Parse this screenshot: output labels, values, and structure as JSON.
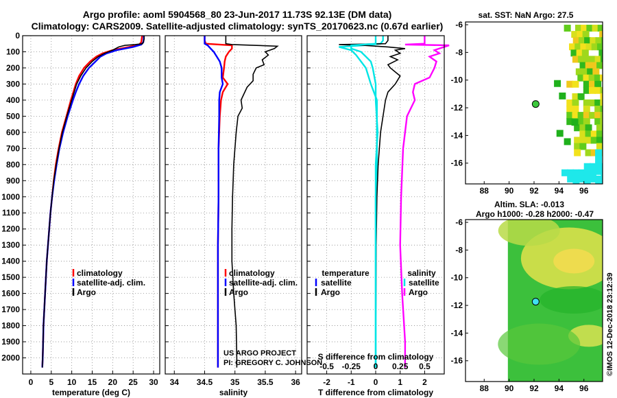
{
  "header": {
    "line1": "Argo profile: aoml 5904568_80 23-Jun-2017 11.73S 92.13E (DM data)",
    "line2": "Climatology: CARS2009. Satellite-adjusted climatology: synTS_20170623.nc (0.67d earlier)"
  },
  "colors": {
    "climatology": "#ff0000",
    "satellite": "#0000ff",
    "argo": "#000000",
    "t_diff": "#00e5e5",
    "s_diff": "#ff00ff",
    "ocean_yellow": "#e8e830",
    "ocean_green": "#2ecc2e"
  },
  "depth_ticks": [
    "0",
    "100",
    "200",
    "300",
    "400",
    "500",
    "600",
    "700",
    "800",
    "900",
    "1000",
    "1100",
    "1200",
    "1300",
    "1400",
    "1500",
    "1600",
    "1700",
    "1800",
    "1900",
    "2000"
  ],
  "chart_data": [
    {
      "type": "line",
      "id": "temperature",
      "xlabel": "temperature (deg C)",
      "ylabel": "",
      "xlim": [
        -2,
        31.5
      ],
      "ylim": [
        2100,
        0
      ],
      "xticks": [
        "0",
        "5",
        "10",
        "15",
        "20",
        "25",
        "30"
      ],
      "xtick_values": [
        0,
        5,
        10,
        15,
        20,
        25,
        30
      ],
      "legend": [
        "climatology",
        "satellite-adj. clim.",
        "Argo"
      ],
      "series": [
        {
          "name": "climatology",
          "color": "#ff0000",
          "depth": [
            0,
            20,
            40,
            55,
            70,
            90,
            110,
            130,
            160,
            200,
            250,
            300,
            350,
            400,
            500,
            600,
            700,
            800,
            900,
            1000,
            1100,
            1200,
            1300,
            1400,
            1500,
            1600,
            1700,
            1800,
            1900,
            2000,
            2060
          ],
          "values": [
            27.2,
            27.1,
            27.0,
            26.5,
            24.0,
            20.0,
            17.5,
            16.0,
            14.5,
            13.0,
            11.8,
            11.0,
            10.4,
            9.8,
            8.7,
            7.6,
            6.8,
            6.1,
            5.6,
            5.2,
            4.8,
            4.5,
            4.2,
            3.9,
            3.7,
            3.5,
            3.3,
            3.1,
            3.0,
            2.9,
            2.8
          ]
        },
        {
          "name": "satellite-adj. clim.",
          "color": "#0000ff",
          "depth": [
            0,
            20,
            40,
            55,
            70,
            90,
            110,
            130,
            160,
            200,
            250,
            300,
            350,
            400,
            500,
            600,
            700,
            800,
            900,
            1000,
            1100,
            1200,
            1300,
            1400,
            1500,
            1600,
            1700,
            1800,
            1900,
            2000,
            2060
          ],
          "values": [
            27.6,
            27.6,
            27.5,
            27.0,
            25.0,
            21.0,
            18.5,
            17.0,
            15.8,
            14.2,
            12.8,
            11.8,
            11.0,
            10.3,
            9.0,
            7.9,
            7.0,
            6.3,
            5.7,
            5.2,
            4.8,
            4.5,
            4.2,
            3.9,
            3.7,
            3.5,
            3.3,
            3.1,
            3.0,
            2.9,
            2.8
          ]
        },
        {
          "name": "Argo",
          "color": "#000000",
          "depth": [
            0,
            20,
            40,
            50,
            55,
            60,
            70,
            90,
            110,
            130,
            160,
            200,
            250,
            300,
            350,
            400,
            500,
            600,
            700,
            800,
            900,
            1000,
            1100,
            1200,
            1300,
            1400,
            1500,
            1600,
            1700,
            1800,
            1900,
            2000,
            2060
          ],
          "values": [
            27.7,
            27.7,
            27.5,
            27.3,
            25.5,
            23.0,
            21.5,
            20.0,
            18.0,
            16.5,
            15.0,
            13.5,
            12.2,
            11.2,
            10.6,
            10.0,
            8.8,
            7.7,
            6.9,
            6.2,
            5.6,
            5.2,
            4.8,
            4.5,
            4.2,
            3.9,
            3.7,
            3.5,
            3.3,
            3.1,
            3.0,
            2.9,
            2.8
          ]
        }
      ]
    },
    {
      "type": "line",
      "id": "salinity",
      "xlabel": "salinity",
      "xlim": [
        33.85,
        36.1
      ],
      "ylim": [
        2100,
        0
      ],
      "xticks": [
        "34",
        "34.5",
        "35",
        "35.5",
        "36"
      ],
      "xtick_values": [
        34,
        34.5,
        35,
        35.5,
        36
      ],
      "legend": [
        "climatology",
        "satellite-adj. clim.",
        "Argo"
      ],
      "credit_line1": "US ARGO PROJECT",
      "credit_line2": "PI: GREGORY C. JOHNSON",
      "series": [
        {
          "name": "climatology",
          "color": "#ff0000",
          "depth": [
            0,
            30,
            50,
            60,
            80,
            100,
            130,
            160,
            200,
            260,
            300,
            350,
            400,
            500,
            700,
            1000,
            1300,
            1600,
            1900,
            2060
          ],
          "values": [
            34.5,
            34.5,
            34.52,
            34.95,
            34.95,
            34.9,
            34.85,
            34.83,
            34.82,
            34.8,
            34.88,
            34.8,
            34.77,
            34.75,
            34.73,
            34.73,
            34.72,
            34.72,
            34.72,
            34.72
          ]
        },
        {
          "name": "satellite-adj. clim.",
          "color": "#0000ff",
          "depth": [
            0,
            30,
            50,
            60,
            80,
            100,
            130,
            160,
            200,
            260,
            300,
            350,
            400,
            500,
            700,
            1000,
            1300,
            1600,
            1900,
            2060
          ],
          "values": [
            34.5,
            34.5,
            34.5,
            34.55,
            34.6,
            34.65,
            34.7,
            34.75,
            34.78,
            34.78,
            34.8,
            34.75,
            34.74,
            34.74,
            34.73,
            34.73,
            34.72,
            34.72,
            34.72,
            34.72
          ]
        },
        {
          "name": "Argo",
          "color": "#000000",
          "depth": [
            0,
            30,
            50,
            55,
            65,
            80,
            100,
            120,
            150,
            180,
            200,
            240,
            280,
            320,
            360,
            400,
            450,
            500,
            600,
            700,
            800,
            900,
            1000,
            1200,
            1400,
            1600,
            1800,
            2000,
            2060
          ],
          "values": [
            34.85,
            34.85,
            34.85,
            34.95,
            35.7,
            35.65,
            35.5,
            35.55,
            35.45,
            35.48,
            35.35,
            35.3,
            35.3,
            35.2,
            35.15,
            35.1,
            35.12,
            35.05,
            35.02,
            35.0,
            34.98,
            34.97,
            34.96,
            34.95,
            34.95,
            34.98,
            35.02,
            35.03,
            35.03
          ]
        }
      ]
    },
    {
      "type": "line",
      "id": "difference",
      "xlabel": "T difference from climatology",
      "xlabel_top": "S difference from climatology",
      "xlim": [
        -2.8,
        2.8
      ],
      "ylim": [
        2100,
        0
      ],
      "xticks": [
        "-2",
        "-1",
        "0",
        "1",
        "2"
      ],
      "xtick_values": [
        -2,
        -1,
        0,
        1,
        2
      ],
      "top_ticks": [
        "-0.5",
        "-0.25",
        "0",
        "0.25",
        "0.5"
      ],
      "top_tick_values": [
        -0.5,
        -0.25,
        0,
        0.25,
        0.5
      ],
      "legend_t_title": "temperature",
      "legend_s_title": "salinity",
      "legend_t": [
        "satellite",
        "Argo"
      ],
      "legend_s": [
        "satellite",
        "Argo"
      ],
      "series": [
        {
          "name": "T satellite",
          "color": "#00e5e5",
          "depth": [
            0,
            30,
            50,
            60,
            70,
            90,
            120,
            160,
            200,
            300,
            400,
            600,
            800,
            1000,
            1200,
            1500,
            1800,
            2060
          ],
          "values": [
            0.3,
            0.3,
            0.2,
            -0.5,
            -1.5,
            -1.0,
            -0.8,
            -0.6,
            -0.4,
            -0.2,
            0.05,
            0.05,
            0.05,
            0.0,
            0.0,
            0.0,
            0.0,
            0.0
          ]
        },
        {
          "name": "T Argo",
          "color": "#000000",
          "depth": [
            0,
            30,
            50,
            55,
            60,
            70,
            80,
            90,
            110,
            130,
            150,
            180,
            200,
            250,
            300,
            350,
            400,
            500,
            600,
            800,
            1000,
            1300,
            1600,
            1900,
            2060
          ],
          "values": [
            0.5,
            0.5,
            0.4,
            -1.5,
            -0.5,
            0.5,
            1.2,
            0.8,
            1.0,
            0.6,
            0.9,
            0.5,
            0.6,
            1.0,
            0.8,
            0.5,
            0.4,
            0.3,
            0.2,
            0.1,
            0.05,
            0.02,
            0.01,
            0.0,
            0.0
          ]
        },
        {
          "name": "S satellite",
          "color": "#00e5e5",
          "depth": [
            0,
            40,
            50,
            60,
            80,
            100,
            130,
            160,
            200,
            300,
            400,
            600,
            800,
            1000,
            1200,
            1500,
            1800,
            2060
          ],
          "values": [
            0.0,
            0.0,
            0.0,
            -0.25,
            -0.25,
            -0.15,
            -0.1,
            -0.05,
            -0.03,
            0.0,
            0.0,
            0.02,
            0.0,
            0.0,
            0.0,
            0.0,
            0.0,
            0.0
          ]
        },
        {
          "name": "S Argo",
          "color": "#ff00ff",
          "depth": [
            0,
            30,
            50,
            55,
            60,
            70,
            90,
            110,
            130,
            160,
            200,
            260,
            300,
            350,
            400,
            500,
            700,
            1000,
            1300,
            1600,
            1900,
            2060
          ],
          "values": [
            0.5,
            0.5,
            0.5,
            0.3,
            0.75,
            0.7,
            0.6,
            0.65,
            0.55,
            0.62,
            0.6,
            0.55,
            0.4,
            0.38,
            0.4,
            0.32,
            0.28,
            0.26,
            0.25,
            0.27,
            0.3,
            0.3
          ]
        }
      ]
    },
    {
      "type": "heatmap",
      "id": "sst_map",
      "title": "sat. SST: NaN Argo: 27.5",
      "xlim": [
        86.5,
        97.5
      ],
      "ylim": [
        -17.5,
        -5.8
      ],
      "xticks": [
        "88",
        "90",
        "92",
        "94",
        "96"
      ],
      "xtick_values": [
        88,
        90,
        92,
        94,
        96
      ],
      "yticks": [
        "-6",
        "-8",
        "-10",
        "-12",
        "-14",
        "-16"
      ],
      "ytick_values": [
        -6,
        -8,
        -10,
        -12,
        -14,
        -16
      ],
      "argo_point": {
        "lon": 92.13,
        "lat": -11.73
      }
    },
    {
      "type": "heatmap",
      "id": "sla_map",
      "title_line1": "Altim. SLA: -0.013",
      "title_line2": "Argo h1000: -0.28 h2000: -0.47",
      "xlim": [
        86.5,
        97.5
      ],
      "ylim": [
        -17.5,
        -5.8
      ],
      "xticks": [
        "88",
        "90",
        "92",
        "94",
        "96"
      ],
      "xtick_values": [
        88,
        90,
        92,
        94,
        96
      ],
      "yticks": [
        "-6",
        "-8",
        "-10",
        "-12",
        "-14",
        "-16"
      ],
      "ytick_values": [
        -6,
        -8,
        -10,
        -12,
        -14,
        -16
      ],
      "argo_point": {
        "lon": 92.13,
        "lat": -11.73
      }
    }
  ],
  "footer": {
    "stamp": "©IMOS 12-Dec-2018 23:12:39"
  }
}
